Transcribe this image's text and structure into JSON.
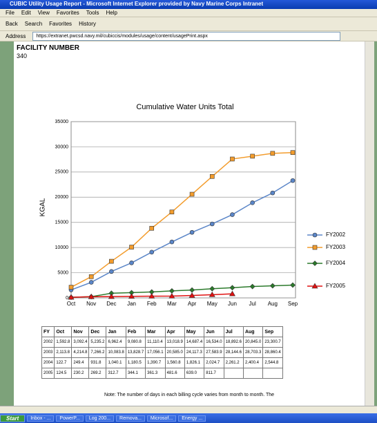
{
  "window": {
    "title": "CUBIC Utility Usage Report - Microsoft Internet Explorer provided by Navy Marine Corps Intranet",
    "menu": [
      "File",
      "Edit",
      "View",
      "Favorites",
      "Tools",
      "Help"
    ],
    "toolbar": [
      "Back",
      "Search",
      "Favorites",
      "History"
    ],
    "address_label": "Address",
    "url": "https://extranet.pwcsd.navy.mil/cubiccis/modules/usage/content/usagePrint.aspx"
  },
  "header": {
    "label": "FACILITY NUMBER",
    "value": "340"
  },
  "chart_data": {
    "type": "line",
    "title": "Cumulative Water Units Total",
    "y_label": "KGAL",
    "categories": [
      "Oct",
      "Nov",
      "Dec",
      "Jan",
      "Feb",
      "Mar",
      "Apr",
      "May",
      "Jun",
      "Jul",
      "Aug",
      "Sep"
    ],
    "ylim": [
      0,
      35000
    ],
    "yticks": [
      0,
      5000,
      10000,
      15000,
      20000,
      25000,
      30000,
      35000
    ],
    "grid": true,
    "legend": "right",
    "series": [
      {
        "name": "FY2002",
        "color": "#5b86c8",
        "marker": "circle",
        "values": [
          1592.8,
          3092.4,
          5235.2,
          6962.4,
          9080.8,
          11110.4,
          13018.9,
          14687.4,
          16534.0,
          18892.6,
          20845.0,
          23300.7
        ]
      },
      {
        "name": "FY2003",
        "color": "#f39c2c",
        "marker": "square",
        "values": [
          2113.8,
          4214.8,
          7266.2,
          10083.8,
          13828.7,
          17056.1,
          20585.0,
          24117.3,
          27583.9,
          28144.6,
          28703.3,
          28860.4
        ]
      },
      {
        "name": "FY2004",
        "color": "#2b7a2b",
        "marker": "diamond",
        "values": [
          122.7,
          249.4,
          931.8,
          1040.1,
          1180.5,
          1390.7,
          1560.8,
          1826.1,
          2024.7,
          2261.2,
          2400.4,
          2544.8
        ]
      },
      {
        "name": "FY2005",
        "color": "#e01010",
        "marker": "triangle",
        "values": [
          124.5,
          230.2,
          269.2,
          312.7,
          344.1,
          361.3,
          481.6,
          639.0,
          811.7,
          null,
          null,
          null
        ]
      }
    ]
  },
  "table": {
    "header": [
      "FY",
      "Oct",
      "Nov",
      "Dec",
      "Jan",
      "Feb",
      "Mar",
      "Apr",
      "May",
      "Jun",
      "Jul",
      "Aug",
      "Sep"
    ],
    "rows": [
      [
        "2002",
        "1,592.8",
        "3,092.4",
        "5,235.2",
        "6,962.4",
        "9,080.8",
        "11,110.4",
        "13,018.9",
        "14,687.4",
        "16,534.0",
        "18,892.6",
        "20,845.0",
        "23,300.7"
      ],
      [
        "2003",
        "2,113.8",
        "4,214.8",
        "7,266.2",
        "10,083.8",
        "13,828.7",
        "17,056.1",
        "20,585.0",
        "24,117.3",
        "27,583.9",
        "28,144.6",
        "28,703.3",
        "28,860.4"
      ],
      [
        "2004",
        "122.7",
        "249.4",
        "931.8",
        "1,040.1",
        "1,180.5",
        "1,390.7",
        "1,560.8",
        "1,826.1",
        "2,024.7",
        "2,261.2",
        "2,400.4",
        "2,544.8"
      ],
      [
        "2005",
        "124.5",
        "230.2",
        "269.2",
        "312.7",
        "344.1",
        "361.3",
        "481.6",
        "639.0",
        "811.7"
      ]
    ]
  },
  "note": "Note: The number of days in each billing cycle varies from month to month. The",
  "taskbar": [
    "Start",
    "Inbox - ...",
    "PowerP...",
    "Log 200...",
    "Remova...",
    "Microsof...",
    "Energy ..."
  ]
}
